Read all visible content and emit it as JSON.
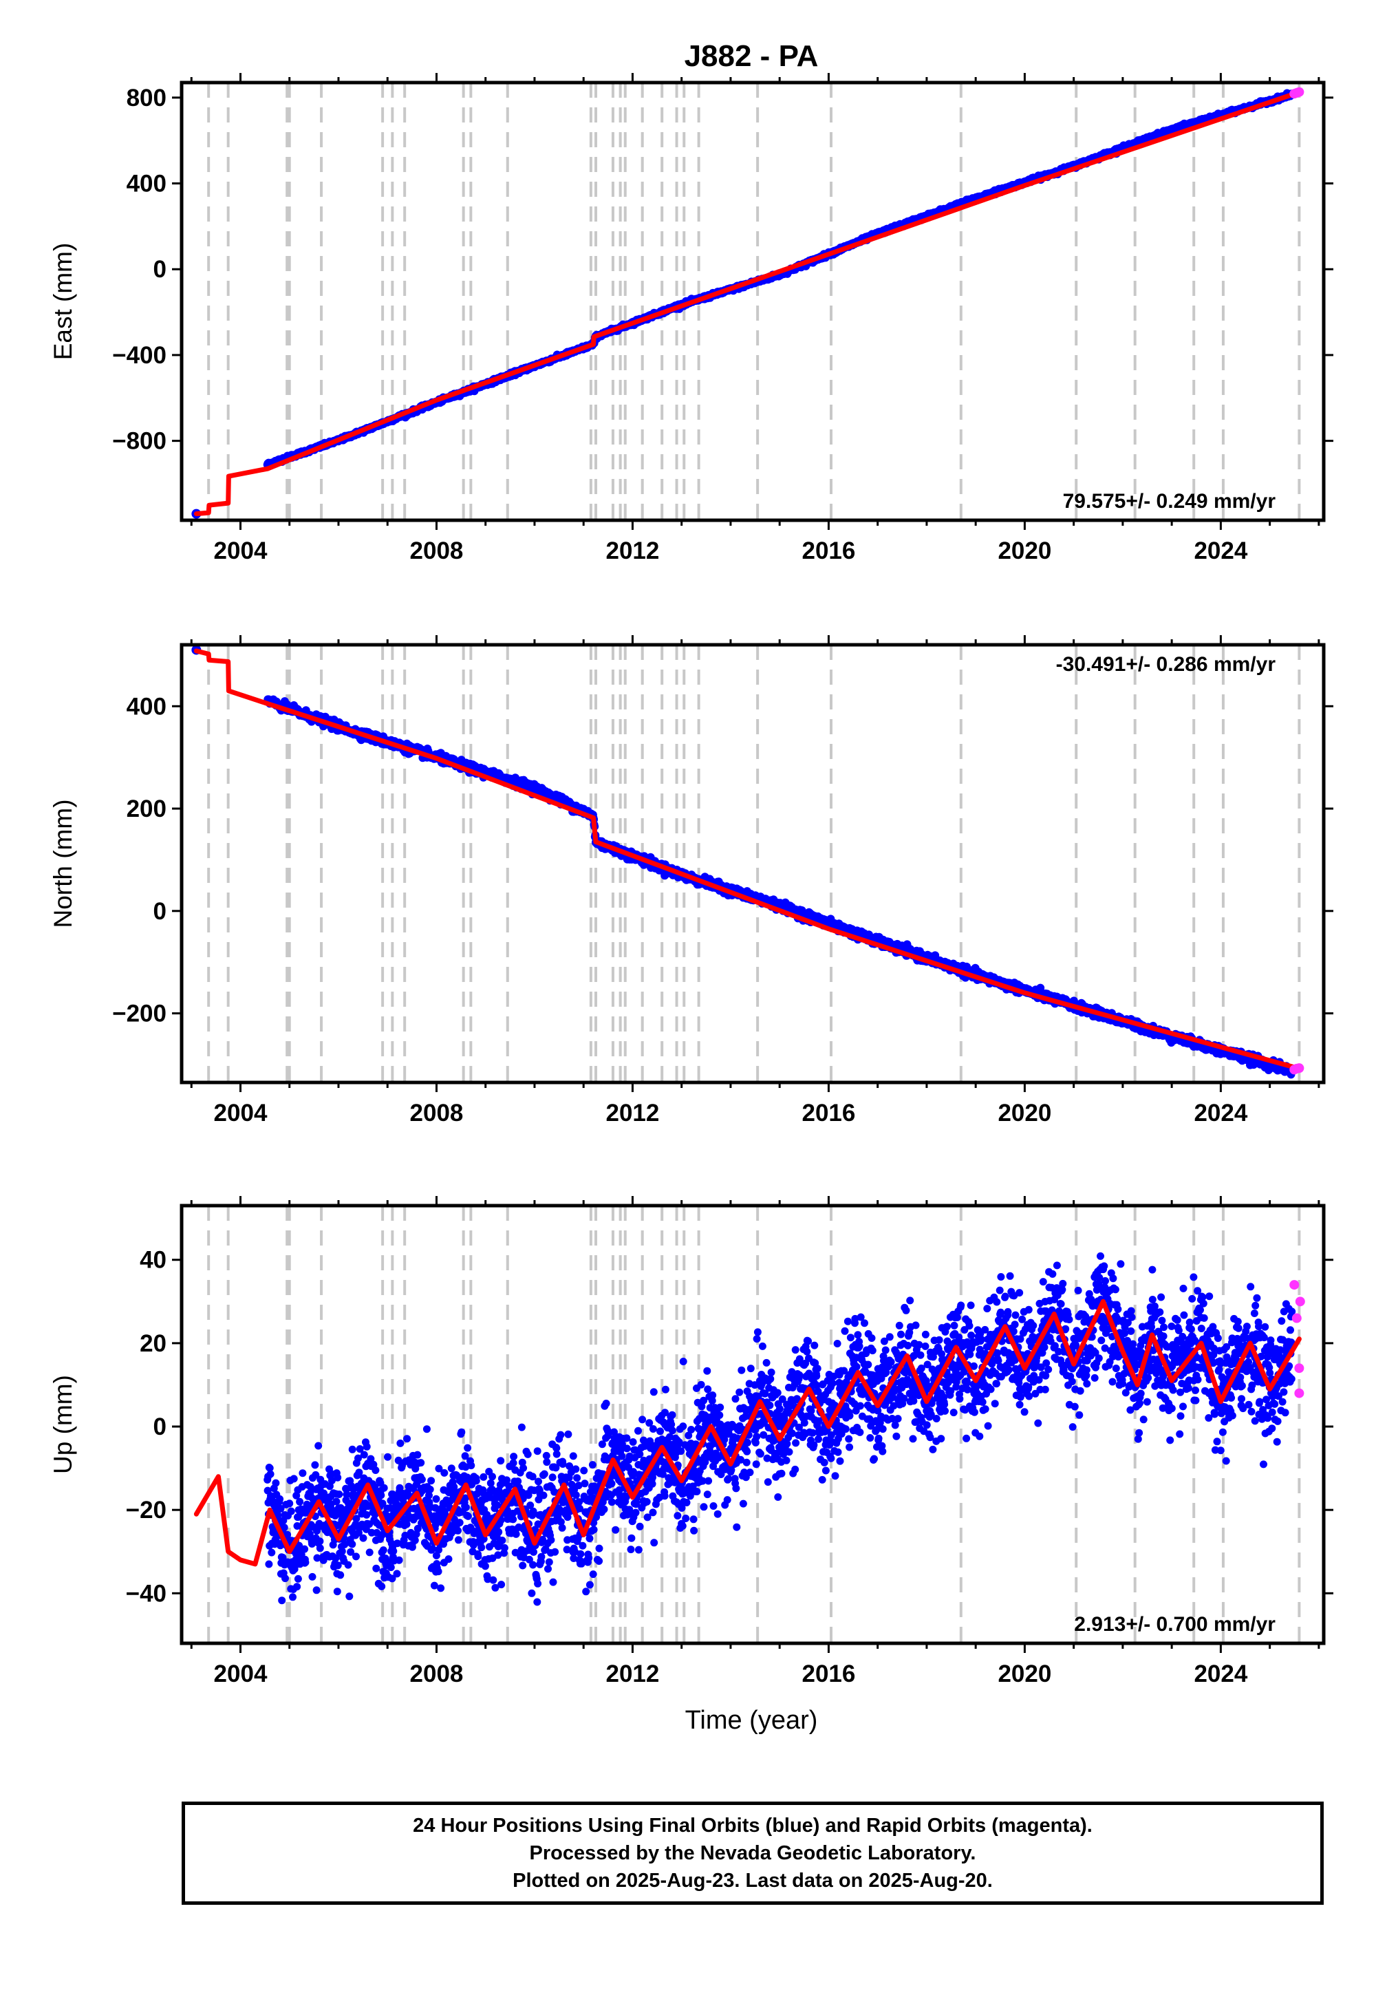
{
  "title": "J882 - PA",
  "xlabel": "Time (year)",
  "colors": {
    "final": "#0000ff",
    "rapid": "#ff33ff",
    "model": "#ff0000",
    "breaks": "#c8c8c8"
  },
  "chart_data": [
    {
      "type": "scatter",
      "panel": "east",
      "ylabel": "East (mm)",
      "xlim": [
        2002.8,
        2026.1
      ],
      "ylim": [
        -1170,
        870
      ],
      "yticks": [
        800,
        400,
        0,
        -400,
        -800
      ],
      "xticks": [
        2004,
        2008,
        2012,
        2016,
        2020,
        2024
      ],
      "rate": "79.575+/- 0.249 mm/yr",
      "rate_position": "bottom-right",
      "breaks": [
        2003.35,
        2003.75,
        2004.95,
        2005.0,
        2005.65,
        2006.9,
        2007.1,
        2007.35,
        2008.55,
        2008.7,
        2009.45,
        2011.15,
        2011.25,
        2011.6,
        2011.75,
        2011.85,
        2012.2,
        2012.6,
        2012.9,
        2013.05,
        2013.35,
        2014.55,
        2016.05,
        2018.7,
        2021.05,
        2022.25,
        2023.45,
        2024.05,
        2025.6
      ],
      "series": [
        {
          "name": "Final Orbits (blue)",
          "role": "final",
          "x": [
            2003.1,
            2004.55,
            2006.0,
            2008.0,
            2010.0,
            2011.2,
            2011.25,
            2013.0,
            2015.0,
            2017.0,
            2019.0,
            2021.0,
            2023.0,
            2025.45
          ],
          "y": [
            -1140,
            -910,
            -798,
            -620,
            -450,
            -350,
            -315,
            -165,
            -25,
            165,
            330,
            480,
            650,
            815
          ]
        },
        {
          "name": "Rapid Orbits (magenta)",
          "role": "rapid",
          "x": [
            2025.5,
            2025.55,
            2025.6
          ],
          "y": [
            818,
            822,
            826
          ]
        },
        {
          "name": "model",
          "role": "model",
          "x": [
            2003.1,
            2003.35,
            2003.36,
            2003.75,
            2003.76,
            2004.55,
            2008.0,
            2011.2,
            2011.21,
            2016.0,
            2020.0,
            2025.6
          ],
          "y": [
            -1140,
            -1135,
            -1100,
            -1090,
            -965,
            -930,
            -610,
            -350,
            -315,
            70,
            390,
            825
          ]
        }
      ]
    },
    {
      "type": "scatter",
      "panel": "north",
      "ylabel": "North (mm)",
      "xlim": [
        2002.8,
        2026.1
      ],
      "ylim": [
        -335,
        520
      ],
      "yticks": [
        400,
        200,
        0,
        -200
      ],
      "xticks": [
        2004,
        2008,
        2012,
        2016,
        2020,
        2024
      ],
      "rate": "-30.491+/- 0.286 mm/yr",
      "rate_position": "top-right",
      "breaks": [
        2003.35,
        2003.75,
        2004.95,
        2005.0,
        2005.65,
        2006.9,
        2007.1,
        2007.35,
        2008.55,
        2008.7,
        2009.45,
        2011.15,
        2011.25,
        2011.6,
        2011.75,
        2011.85,
        2012.2,
        2012.6,
        2012.9,
        2013.05,
        2013.35,
        2014.55,
        2016.05,
        2018.7,
        2021.05,
        2022.25,
        2023.45,
        2024.05,
        2025.6
      ],
      "series": [
        {
          "name": "Final Orbits (blue)",
          "role": "final",
          "x": [
            2003.1,
            2004.55,
            2006.0,
            2008.0,
            2010.0,
            2011.2,
            2011.25,
            2013.0,
            2015.0,
            2017.0,
            2019.0,
            2021.0,
            2023.0,
            2025.45
          ],
          "y": [
            510,
            410,
            360,
            300,
            240,
            185,
            135,
            70,
            10,
            -60,
            -125,
            -185,
            -245,
            -312
          ]
        },
        {
          "name": "Rapid Orbits (magenta)",
          "role": "rapid",
          "x": [
            2025.5,
            2025.55,
            2025.6
          ],
          "y": [
            -310,
            -308,
            -307
          ]
        },
        {
          "name": "model",
          "role": "model",
          "x": [
            2003.1,
            2003.35,
            2003.36,
            2003.75,
            2003.76,
            2004.55,
            2008.0,
            2011.2,
            2011.25,
            2016.0,
            2020.0,
            2025.6
          ],
          "y": [
            508,
            502,
            490,
            487,
            430,
            405,
            298,
            182,
            135,
            -35,
            -160,
            -308
          ]
        }
      ]
    },
    {
      "type": "scatter",
      "panel": "up",
      "ylabel": "Up (mm)",
      "xlim": [
        2002.8,
        2026.1
      ],
      "ylim": [
        -52,
        53
      ],
      "yticks": [
        40,
        20,
        0,
        -20,
        -40
      ],
      "xticks": [
        2004,
        2008,
        2012,
        2016,
        2020,
        2024
      ],
      "rate": "2.913+/- 0.700 mm/yr",
      "rate_position": "bottom-right",
      "breaks": [
        2003.35,
        2003.75,
        2004.95,
        2005.0,
        2005.65,
        2006.9,
        2007.1,
        2007.35,
        2008.55,
        2008.7,
        2009.45,
        2011.15,
        2011.25,
        2011.6,
        2011.75,
        2011.85,
        2012.2,
        2012.6,
        2012.9,
        2013.05,
        2013.35,
        2014.55,
        2016.05,
        2018.7,
        2021.05,
        2022.25,
        2023.45,
        2024.05,
        2025.6
      ],
      "series": [
        {
          "name": "Final Orbits (blue)",
          "role": "final",
          "x": [
            2004.55,
            2005.5,
            2006.5,
            2007.5,
            2008.5,
            2009.5,
            2010.5,
            2011.5,
            2012.5,
            2013.5,
            2014.5,
            2015.5,
            2016.5,
            2017.5,
            2018.5,
            2019.5,
            2020.5,
            2021.5,
            2022.5,
            2023.5,
            2024.5,
            2025.45
          ],
          "y": [
            -22,
            -20,
            -18,
            -24,
            -20,
            -22,
            -21,
            -10,
            -8,
            -3,
            2,
            5,
            8,
            11,
            14,
            18,
            22,
            25,
            20,
            12,
            14,
            16
          ]
        },
        {
          "name": "Rapid Orbits (magenta)",
          "role": "rapid",
          "x": [
            2025.5,
            2025.55,
            2025.6,
            2025.6,
            2025.62
          ],
          "y": [
            34,
            26,
            14,
            8,
            30
          ]
        },
        {
          "name": "model",
          "role": "model",
          "x": [
            2003.1,
            2003.4,
            2003.55,
            2003.75,
            2004.0,
            2004.3,
            2004.6,
            2005.0,
            2005.6,
            2006.0,
            2006.6,
            2007.0,
            2007.6,
            2008.0,
            2008.6,
            2009.0,
            2009.6,
            2010.0,
            2010.6,
            2011.0,
            2011.6,
            2012.0,
            2012.6,
            2013.0,
            2013.6,
            2014.0,
            2014.6,
            2015.0,
            2015.6,
            2016.0,
            2016.6,
            2017.0,
            2017.6,
            2018.0,
            2018.6,
            2019.0,
            2019.6,
            2020.0,
            2020.6,
            2021.0,
            2021.6,
            2022.0,
            2022.3,
            2022.6,
            2023.0,
            2023.6,
            2024.0,
            2024.6,
            2025.0,
            2025.6
          ],
          "y": [
            -21,
            -15,
            -12,
            -30,
            -32,
            -33,
            -20,
            -30,
            -18,
            -27,
            -14,
            -25,
            -16,
            -28,
            -14,
            -26,
            -15,
            -28,
            -14,
            -26,
            -8,
            -17,
            -5,
            -13,
            0,
            -9,
            6,
            -3,
            9,
            0,
            13,
            5,
            17,
            6,
            19,
            11,
            24,
            14,
            27,
            15,
            30,
            18,
            10,
            22,
            11,
            20,
            6,
            20,
            9,
            21
          ]
        }
      ]
    }
  ],
  "footer": {
    "line1": "24 Hour Positions Using Final Orbits (blue) and Rapid Orbits (magenta).",
    "line2": "Processed by the Nevada Geodetic Laboratory.",
    "line3": "Plotted on 2025-Aug-23. Last data on 2025-Aug-20."
  }
}
